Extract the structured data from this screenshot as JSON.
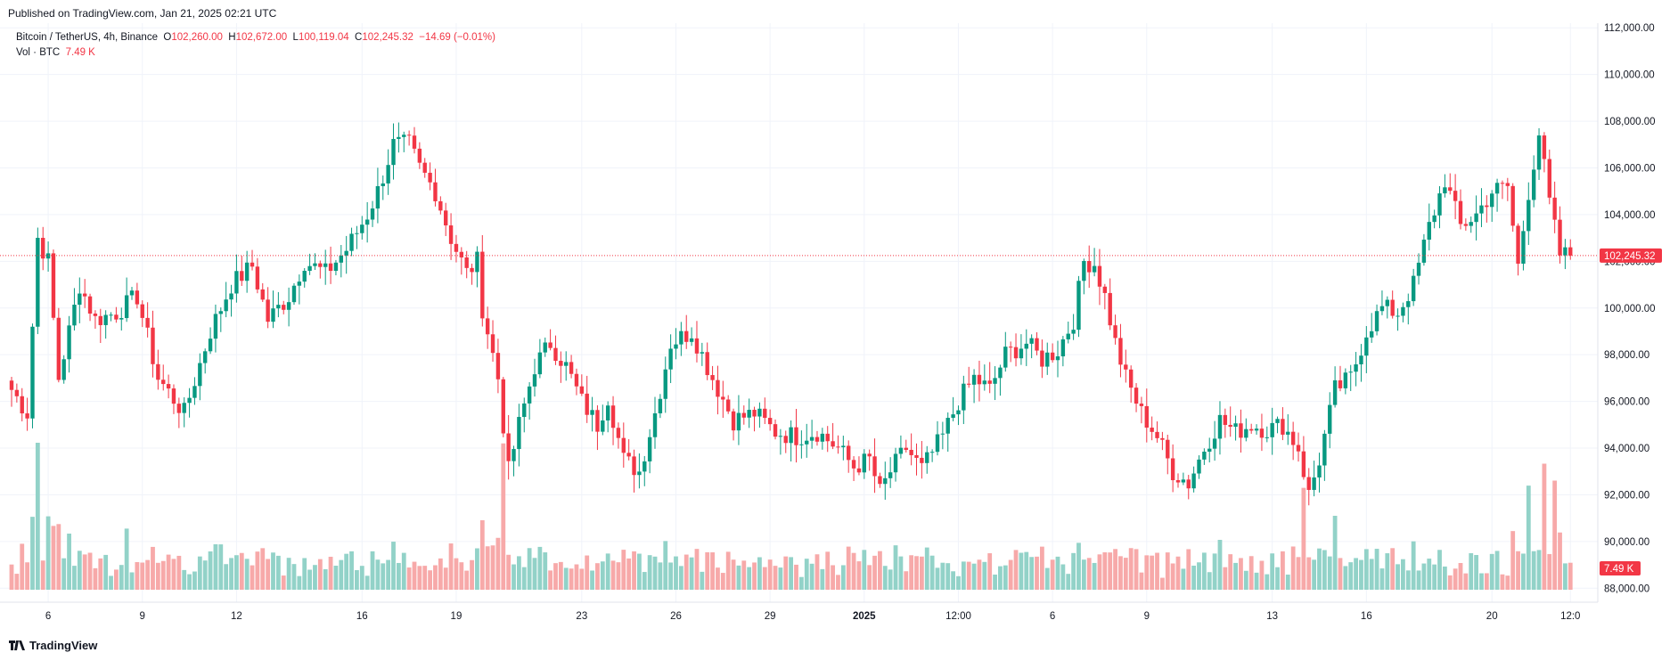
{
  "published": "Published on TradingView.com, Jan 21, 2025 02:21 UTC",
  "legend": {
    "symbol": "Bitcoin / TetherUS, 4h, Binance",
    "open_label": "O",
    "open": "102,260.00",
    "high_label": "H",
    "high": "102,672.00",
    "low_label": "L",
    "low": "100,119.04",
    "close_label": "C",
    "close": "102,245.32",
    "change": "−14.69 (−0.01%)",
    "vol_label": "Vol · BTC",
    "vol_value": "7.49 K"
  },
  "footer": {
    "logo_text": "TradingView"
  },
  "colors": {
    "up": "#089981",
    "down": "#f23645",
    "up_vol": "#92d2c8",
    "down_vol": "#f7a9a9",
    "grid": "#f0f3fa"
  },
  "chart_data": {
    "type": "candlestick",
    "y_axis_ticks": [
      88000,
      90000,
      92000,
      94000,
      96000,
      98000,
      100000,
      102000,
      104000,
      106000,
      108000,
      110000,
      112000
    ],
    "y_tick_labels": [
      "88,000.00",
      "90,000.00",
      "92,000.00",
      "94,000.00",
      "96,000.00",
      "98,000.00",
      "100,000.00",
      "102,000.00",
      "104,000.00",
      "106,000.00",
      "108,000.00",
      "110,000.00",
      "112,000.00"
    ],
    "ylim": [
      87400,
      112200
    ],
    "x_tick_labels": [
      {
        "label": "6",
        "bar": 7
      },
      {
        "label": "9",
        "bar": 25
      },
      {
        "label": "12",
        "bar": 43
      },
      {
        "label": "16",
        "bar": 67
      },
      {
        "label": "19",
        "bar": 85
      },
      {
        "label": "23",
        "bar": 109
      },
      {
        "label": "26",
        "bar": 127
      },
      {
        "label": "29",
        "bar": 145
      },
      {
        "label": "2025",
        "bar": 163,
        "bold": true
      },
      {
        "label": "12:00",
        "bar": 181
      },
      {
        "label": "6",
        "bar": 199
      },
      {
        "label": "9",
        "bar": 217
      },
      {
        "label": "13",
        "bar": 241
      },
      {
        "label": "16",
        "bar": 259
      },
      {
        "label": "20",
        "bar": 283
      },
      {
        "label": "12:0",
        "bar": 298
      }
    ],
    "last_price": 102245.32,
    "last_price_label": "102,245.32",
    "last_volume_label": "7.49 K",
    "bars_total": 305,
    "control_points": [
      [
        0,
        96500
      ],
      [
        3,
        95500
      ],
      [
        5,
        103000
      ],
      [
        7,
        102000
      ],
      [
        9,
        97000
      ],
      [
        11,
        99000
      ],
      [
        13,
        101000
      ],
      [
        16,
        99500
      ],
      [
        20,
        99800
      ],
      [
        24,
        100500
      ],
      [
        28,
        97000
      ],
      [
        33,
        95500
      ],
      [
        38,
        99000
      ],
      [
        42,
        101000
      ],
      [
        46,
        101800
      ],
      [
        49,
        99500
      ],
      [
        53,
        100500
      ],
      [
        56,
        102000
      ],
      [
        60,
        101500
      ],
      [
        64,
        102500
      ],
      [
        68,
        104000
      ],
      [
        70,
        105000
      ],
      [
        73,
        107000
      ],
      [
        76,
        107000
      ],
      [
        78,
        106000
      ],
      [
        81,
        105000
      ],
      [
        84,
        103000
      ],
      [
        87,
        101500
      ],
      [
        89,
        102000
      ],
      [
        90,
        100000
      ],
      [
        93,
        97000
      ],
      [
        95,
        93000
      ],
      [
        97,
        95000
      ],
      [
        100,
        97500
      ],
      [
        103,
        98500
      ],
      [
        106,
        97500
      ],
      [
        109,
        96000
      ],
      [
        112,
        95000
      ],
      [
        114,
        96200
      ],
      [
        117,
        93500
      ],
      [
        120,
        93000
      ],
      [
        123,
        95500
      ],
      [
        126,
        98500
      ],
      [
        130,
        99000
      ],
      [
        134,
        97000
      ],
      [
        138,
        95200
      ],
      [
        142,
        95500
      ],
      [
        146,
        94700
      ],
      [
        150,
        94500
      ],
      [
        154,
        94700
      ],
      [
        158,
        94000
      ],
      [
        161,
        93200
      ],
      [
        164,
        93500
      ],
      [
        166,
        92100
      ],
      [
        168,
        93000
      ],
      [
        171,
        94000
      ],
      [
        174,
        93100
      ],
      [
        178,
        94500
      ],
      [
        181,
        96000
      ],
      [
        184,
        97000
      ],
      [
        187,
        96500
      ],
      [
        190,
        98000
      ],
      [
        194,
        98500
      ],
      [
        197,
        97800
      ],
      [
        200,
        98200
      ],
      [
        203,
        99500
      ],
      [
        205,
        102000
      ],
      [
        207,
        101900
      ],
      [
        209,
        100500
      ],
      [
        211,
        98500
      ],
      [
        213,
        97000
      ],
      [
        216,
        95500
      ],
      [
        219,
        94500
      ],
      [
        222,
        93000
      ],
      [
        225,
        92500
      ],
      [
        228,
        94000
      ],
      [
        231,
        95200
      ],
      [
        234,
        94700
      ],
      [
        237,
        95000
      ],
      [
        240,
        94800
      ],
      [
        243,
        95000
      ],
      [
        246,
        94000
      ],
      [
        248,
        92000
      ],
      [
        250,
        93500
      ],
      [
        253,
        96500
      ],
      [
        256,
        97000
      ],
      [
        259,
        99000
      ],
      [
        262,
        100000
      ],
      [
        265,
        99800
      ],
      [
        268,
        101000
      ],
      [
        271,
        103500
      ],
      [
        274,
        105500
      ],
      [
        277,
        103500
      ],
      [
        280,
        104000
      ],
      [
        283,
        105000
      ],
      [
        286,
        105200
      ],
      [
        288,
        101800
      ],
      [
        290,
        105000
      ],
      [
        292,
        107500
      ],
      [
        294,
        104500
      ],
      [
        296,
        102300
      ],
      [
        298,
        102245
      ]
    ],
    "volume_spikes": [
      [
        5,
        3.6
      ],
      [
        7,
        2.8
      ],
      [
        94,
        2.4
      ],
      [
        247,
        2.2
      ],
      [
        290,
        2.5
      ],
      [
        293,
        2.9
      ],
      [
        295,
        2.7
      ],
      [
        253,
        1.6
      ],
      [
        40,
        1.4
      ],
      [
        22,
        1.8
      ]
    ]
  }
}
